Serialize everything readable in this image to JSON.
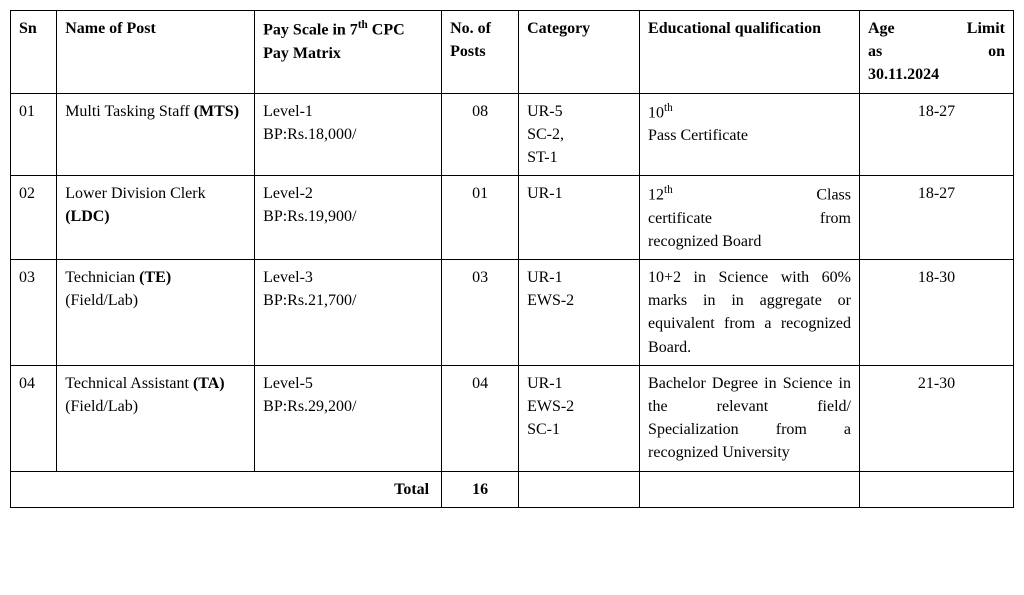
{
  "table": {
    "columns": [
      {
        "key": "sn",
        "label": "Sn",
        "class": "col-sn"
      },
      {
        "key": "name",
        "label_html": "Name of Post",
        "class": "col-name"
      },
      {
        "key": "pay",
        "label_html": "Pay Scale in 7<span class='ord-sup'>th</span> CPC Pay Matrix",
        "class": "col-pay"
      },
      {
        "key": "posts",
        "label_html": "No. of Posts",
        "class": "col-posts"
      },
      {
        "key": "category",
        "label": "Category",
        "class": "col-cat"
      },
      {
        "key": "edu",
        "label_html": "Educational qualification",
        "class": "col-edu"
      },
      {
        "key": "age",
        "label_html": "<span class='justify-both' style='display:block'>Age Limit</span><span class='justify-both' style='display:block'>as on</span>30.11.2024",
        "class": "col-age"
      }
    ],
    "rows": [
      {
        "sn": "01",
        "name_html": "Multi Tasking Staff  <b>(MTS)</b>",
        "pay_html": "Level-1<br>BP:Rs.18,000/",
        "posts": "08",
        "category_html": "UR-5<br>SC-2,<br>ST-1",
        "edu_html": "10<span class='ord-sup'>th</span><br>Pass Certificate",
        "age": "18-27"
      },
      {
        "sn": "02",
        "name_html": "Lower Division Clerk <b>(LDC)</b>",
        "pay_html": "Level-2<br>BP:Rs.19,900/",
        "posts": "01",
        "category_html": "UR-1",
        "edu_html": "<span class='justify-both' style='display:block'>12<span class='ord-sup'>th</span> Class</span><span class='justify-both' style='display:block'>certificate from</span>recognized Board",
        "age": "18-27"
      },
      {
        "sn": "03",
        "name_html": "Technician <b>(TE)</b> (Field/Lab)",
        "pay_html": "Level-3<br>BP:Rs.21,700/",
        "posts": "03",
        "category_html": "UR-1<br>EWS-2",
        "edu_html": "<span class='justify-body' style='display:block'>10+2 in Science with 60% marks in in aggregate or equivalent from a recognized Board.</span>",
        "age": "18-30"
      },
      {
        "sn": "04",
        "name_html": "Technical Assistant <b>(TA)</b> (Field/Lab)",
        "pay_html": "Level-5<br>BP:Rs.29,200/",
        "posts": "04",
        "category_html": "UR-1<br>EWS-2<br>SC-1",
        "edu_html": "<span class='justify-body' style='display:block'>Bachelor Degree in Science in the relevant field/ Specialization from a recognized University</span>",
        "age": "21-30"
      }
    ],
    "total_label": "Total",
    "total_value": "16"
  },
  "style": {
    "font_family": "Bookman Old Style",
    "font_size_pt": 12,
    "border_color": "#000000",
    "background_color": "#ffffff",
    "text_color": "#000000"
  }
}
